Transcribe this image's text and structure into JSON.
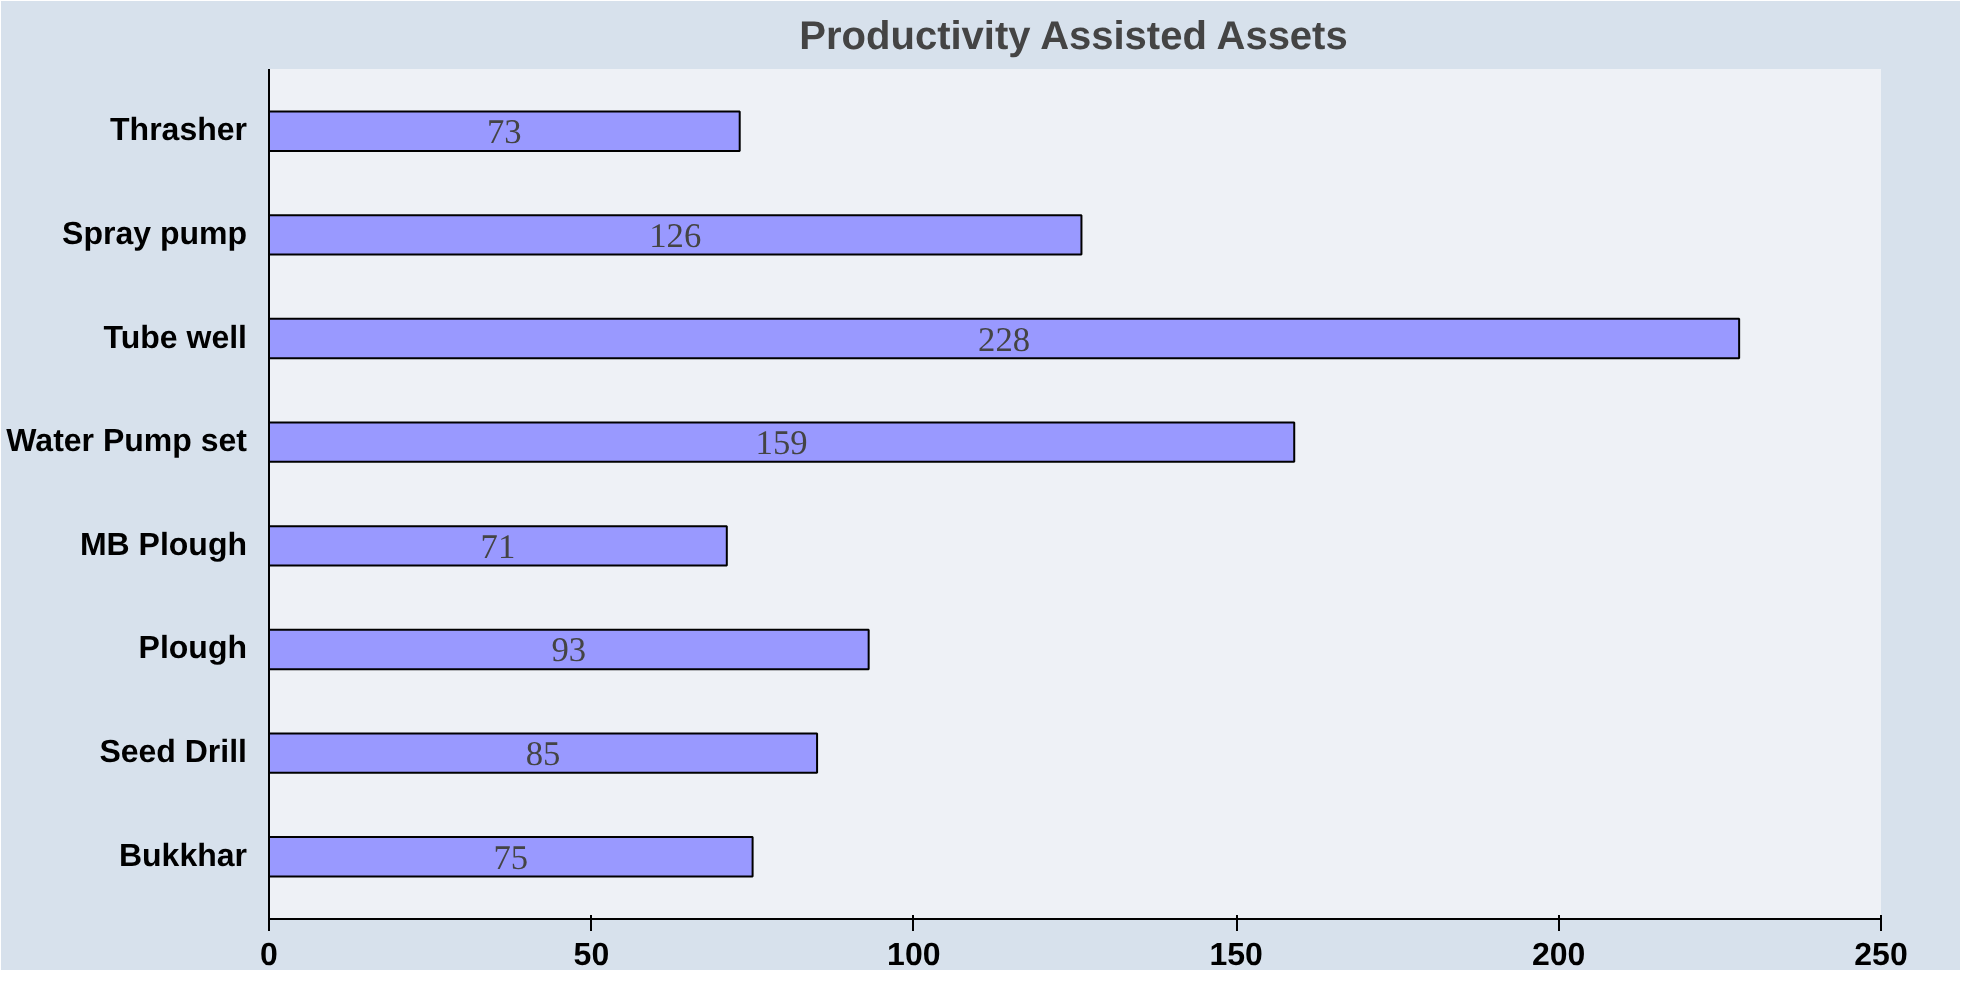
{
  "chart_data": {
    "type": "bar",
    "orientation": "horizontal",
    "title": "Productivity Assisted Assets",
    "categories": [
      "Thrasher",
      "Spray pump",
      "Tube well",
      "Water Pump set",
      "MB Plough",
      "Plough",
      "Seed Drill",
      "Bukkhar"
    ],
    "values": [
      73,
      126,
      228,
      159,
      71,
      93,
      85,
      75
    ],
    "color": "#9999ff",
    "xlim": [
      0,
      250
    ],
    "xticks": [
      0,
      50,
      100,
      150,
      200,
      250
    ],
    "data_labels": true,
    "grid": false
  }
}
